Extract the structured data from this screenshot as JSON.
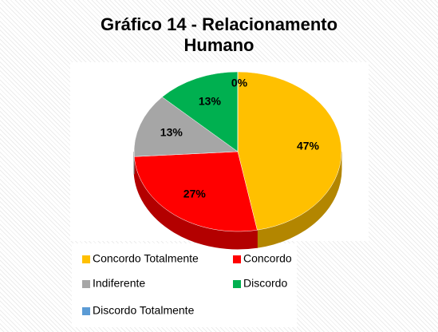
{
  "chart_data": {
    "type": "pie",
    "title": "Gráfico 14 - Relacionamento Humano",
    "categories": [
      "Concordo Totalmente",
      "Concordo",
      "Indiferente",
      "Discordo",
      "Discordo Totalmente"
    ],
    "values": [
      47,
      27,
      13,
      13,
      0
    ],
    "value_labels": [
      "47%",
      "27%",
      "13%",
      "13%",
      "0%"
    ],
    "colors": [
      "#FFC000",
      "#FF0000",
      "#A6A6A6",
      "#00B050",
      "#5B9BD5"
    ]
  }
}
